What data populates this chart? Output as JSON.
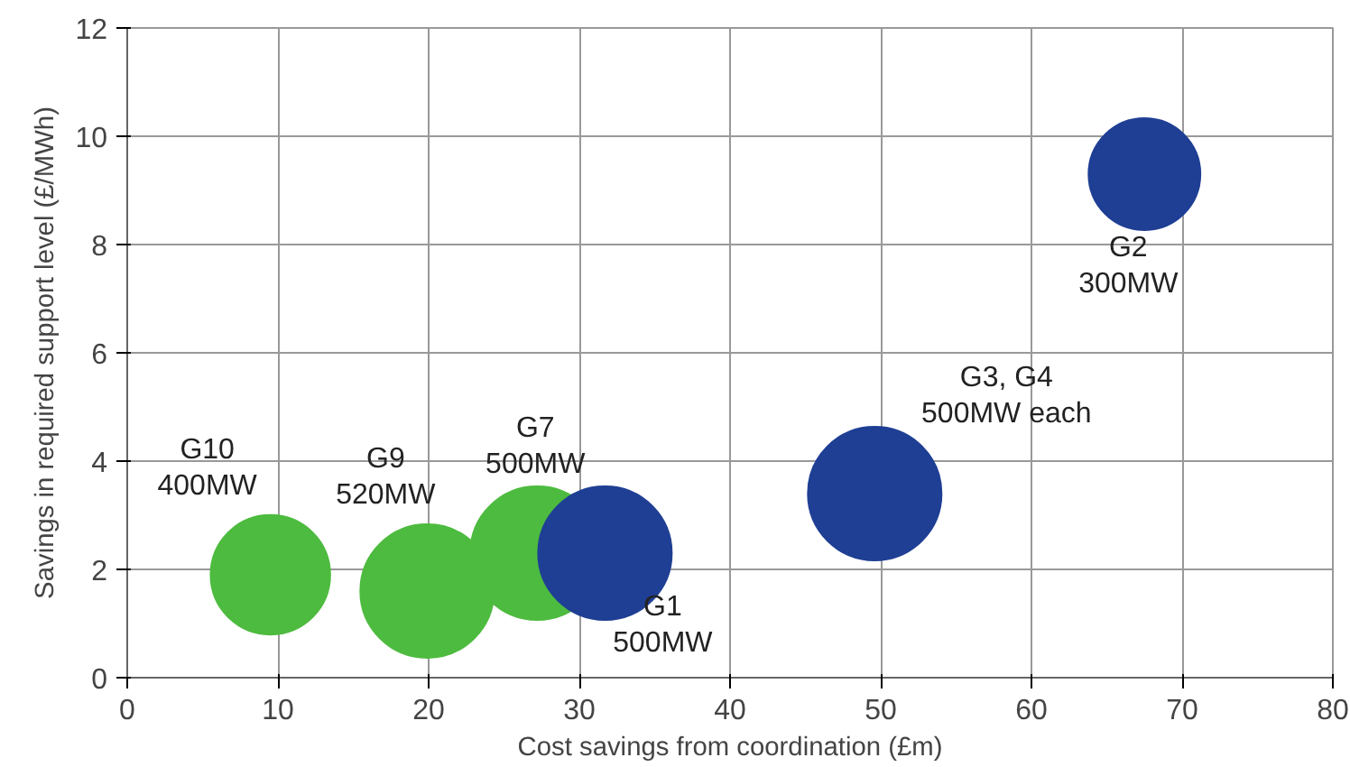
{
  "chart_data": {
    "type": "bubble",
    "xlabel": "Cost savings from coordination (£m)",
    "ylabel": "Savings in required support level (£/MWh)",
    "xlim": [
      0,
      80
    ],
    "xticks": [
      0,
      10,
      20,
      30,
      40,
      50,
      60,
      70,
      80
    ],
    "ylim": [
      0,
      12
    ],
    "yticks": [
      0,
      2,
      4,
      6,
      8,
      10,
      12
    ],
    "grid": true,
    "series": [
      {
        "color": "#4dbb3f",
        "x": [
          9.5,
          19.9,
          27.2
        ],
        "values": [
          1.9,
          1.6,
          2.3
        ],
        "sizes": [
          0.8,
          1,
          1
        ]
      },
      {
        "color": "#1f3f94",
        "x": [
          31.7,
          49.6,
          67.5
        ],
        "values": [
          2.3,
          3.4,
          9.3
        ],
        "sizes": [
          1,
          1,
          0.7
        ]
      }
    ],
    "annotations": [
      {
        "text": "G10\n400MW",
        "x": 9.5,
        "y": 1.9
      },
      {
        "text": "G9\n520MW",
        "x": 19.9,
        "y": 1.6
      },
      {
        "text": "G7\n500MW",
        "x": 27.2,
        "y": 2.3
      },
      {
        "text": "G1\n500MW",
        "x": 31.7,
        "y": 2.3
      },
      {
        "text": "G3, G4\n500MW each",
        "x": 49.6,
        "y": 3.4
      },
      {
        "text": "G2\n300MW",
        "x": 67.5,
        "y": 9.3
      }
    ]
  }
}
